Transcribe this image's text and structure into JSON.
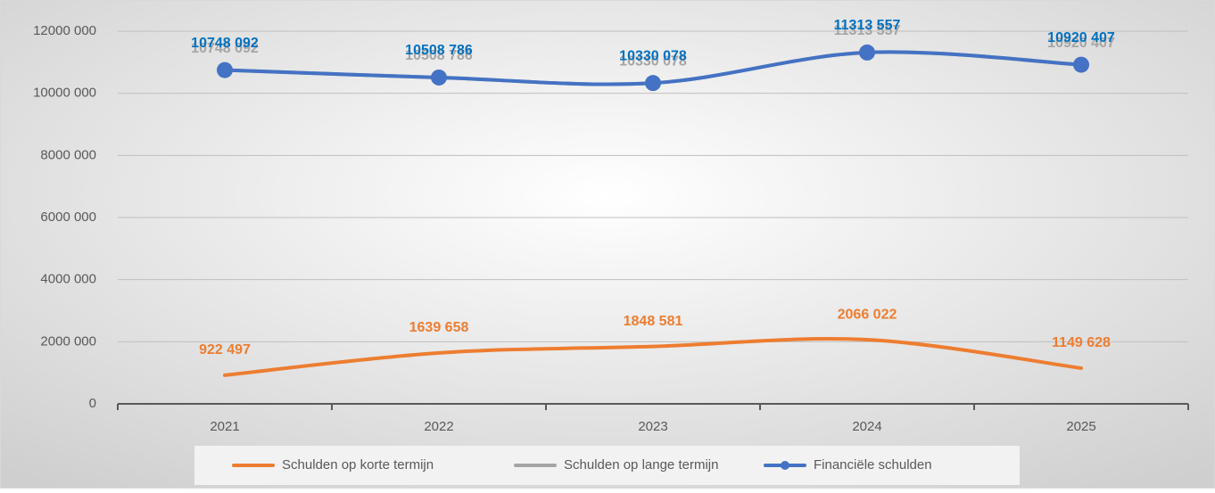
{
  "chart_data": {
    "type": "line",
    "categories": [
      "2021",
      "2022",
      "2023",
      "2024",
      "2025"
    ],
    "series": [
      {
        "name": "Schulden op korte termijn",
        "color": "#ed7d31",
        "values": [
          922497,
          1639658,
          1848581,
          2066022,
          1149628
        ],
        "value_labels": [
          "922 497",
          "1639 658",
          "1848 581",
          "2066 022",
          "1149 628"
        ]
      },
      {
        "name": "Schulden op lange termijn",
        "color": "#a5a5a5",
        "values": [
          10748092,
          10508786,
          10330078,
          11313557,
          10920407
        ],
        "value_labels": [
          "10748 092",
          "10508 786",
          "10330 078",
          "11313 557",
          "10920 407"
        ]
      },
      {
        "name": "Financiële schulden",
        "color": "#4472c4",
        "values": [
          10748092,
          10508786,
          10330078,
          11313557,
          10920407
        ],
        "value_labels": [
          "10748 092",
          "10508 786",
          "10330 078",
          "11313 557",
          "10920 407"
        ],
        "marker": true
      }
    ],
    "ylim": [
      0,
      12000000
    ],
    "yticks": [
      0,
      {
        "value": 2000000,
        "label": "2000 000"
      },
      {
        "value": 4000000,
        "label": "4000 000"
      },
      {
        "value": 6000000,
        "label": "6000 000"
      },
      {
        "value": 8000000,
        "label": "8000 000"
      },
      {
        "value": 10000000,
        "label": "10000 000"
      },
      {
        "value": 12000000,
        "label": "12000 000"
      }
    ],
    "grid": true,
    "legend": "bottom"
  }
}
